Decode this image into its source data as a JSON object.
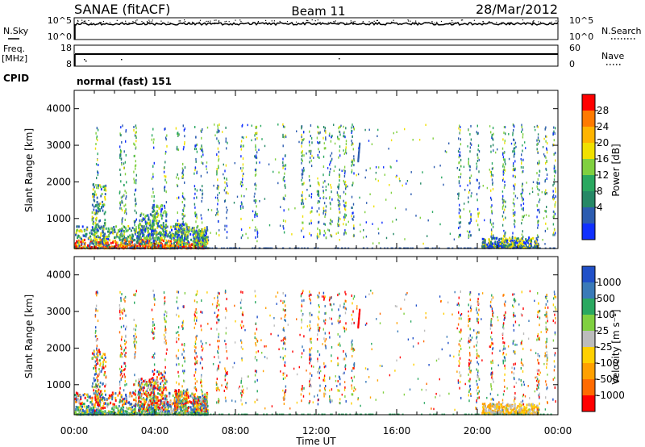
{
  "header": {
    "station": "SANAE (fitACF)",
    "beam": "Beam 11",
    "date": "28/Mar/2012"
  },
  "labels": {
    "nsky": "N.Sky",
    "nsearch": "N.Search",
    "freq_line1": "Freq.",
    "freq_line2": "[MHz]",
    "nave": "Nave",
    "cpid": "CPID",
    "cpid_value": "normal (fast) 151"
  },
  "noise_panel": {
    "left_ticks": [
      "10^5",
      "10^0"
    ],
    "right_ticks": [
      "10^5",
      "10^0"
    ]
  },
  "freq_panel": {
    "left_ticks": [
      "18",
      "8"
    ],
    "right_ticks": [
      "60",
      "0"
    ]
  },
  "chart_data": [
    {
      "type": "heatmap",
      "title": "",
      "parameter": "Power",
      "colorbar_label": "Power [dB]",
      "colorbar_ticks": [
        "28",
        "24",
        "20",
        "16",
        "12",
        "8",
        "4"
      ],
      "colorbar_colors": [
        "#ff0000",
        "#ff7a00",
        "#ffb400",
        "#f0e000",
        "#80d040",
        "#2aa860",
        "#268866",
        "#2c5cb0",
        "#1030ff"
      ],
      "ylabel": "Slant Range [km]",
      "yticks": [
        "1000",
        "2000",
        "3000",
        "4000"
      ],
      "ylim": [
        180,
        4500
      ],
      "xlim": [
        "00:00",
        "24:00"
      ]
    },
    {
      "type": "heatmap",
      "title": "",
      "parameter": "Velocity",
      "colorbar_label": "Velocity [m s⁻¹]",
      "colorbar_ticks": [
        "1000",
        "500",
        "100",
        "25",
        "-25",
        "-100",
        "-500",
        "-1000"
      ],
      "colorbar_colors": [
        "#2050c8",
        "#3a7ab8",
        "#2aa860",
        "#80d040",
        "#bcbcbc",
        "#ffd000",
        "#ffa000",
        "#ff6a00",
        "#ff0000"
      ],
      "ylabel": "Slant Range [km]",
      "yticks": [
        "1000",
        "2000",
        "3000",
        "4000"
      ],
      "ylim": [
        180,
        4500
      ],
      "xlim": [
        "00:00",
        "24:00"
      ]
    }
  ],
  "x_axis": {
    "ticks": [
      "00:00",
      "04:00",
      "08:00",
      "12:00",
      "16:00",
      "20:00",
      "00:00"
    ],
    "label": "Time UT"
  }
}
